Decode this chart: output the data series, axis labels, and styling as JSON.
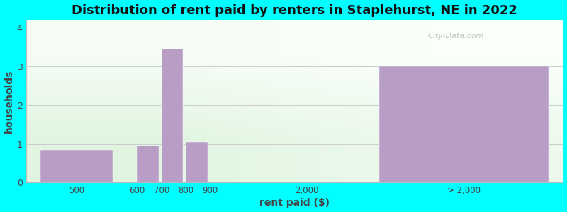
{
  "title": "Distribution of rent paid by renters in Staplehurst, NE in 2022",
  "xlabel": "rent paid ($)",
  "ylabel": "households",
  "background_color": "#00FFFF",
  "bar_color": "#b89ec4",
  "ylim": [
    0,
    4.2
  ],
  "yticks": [
    0,
    1,
    2,
    3,
    4
  ],
  "watermark": "City-Data.com",
  "bar_positions": [
    0,
    2,
    2.5,
    3.0,
    3.5,
    7.0
  ],
  "bar_widths": [
    1.5,
    0.45,
    0.45,
    0.45,
    0.45,
    3.5
  ],
  "bar_heights": [
    0.85,
    0.95,
    3.45,
    1.05,
    0.0,
    3.0
  ],
  "xtick_positions": [
    0.75,
    2.0,
    2.5,
    3.0,
    3.5,
    5.5,
    8.75
  ],
  "xtick_labels": [
    "500",
    "600",
    "700",
    "800",
    "900",
    "2,000",
    "> 2,000"
  ],
  "xlim": [
    -0.3,
    10.8
  ]
}
